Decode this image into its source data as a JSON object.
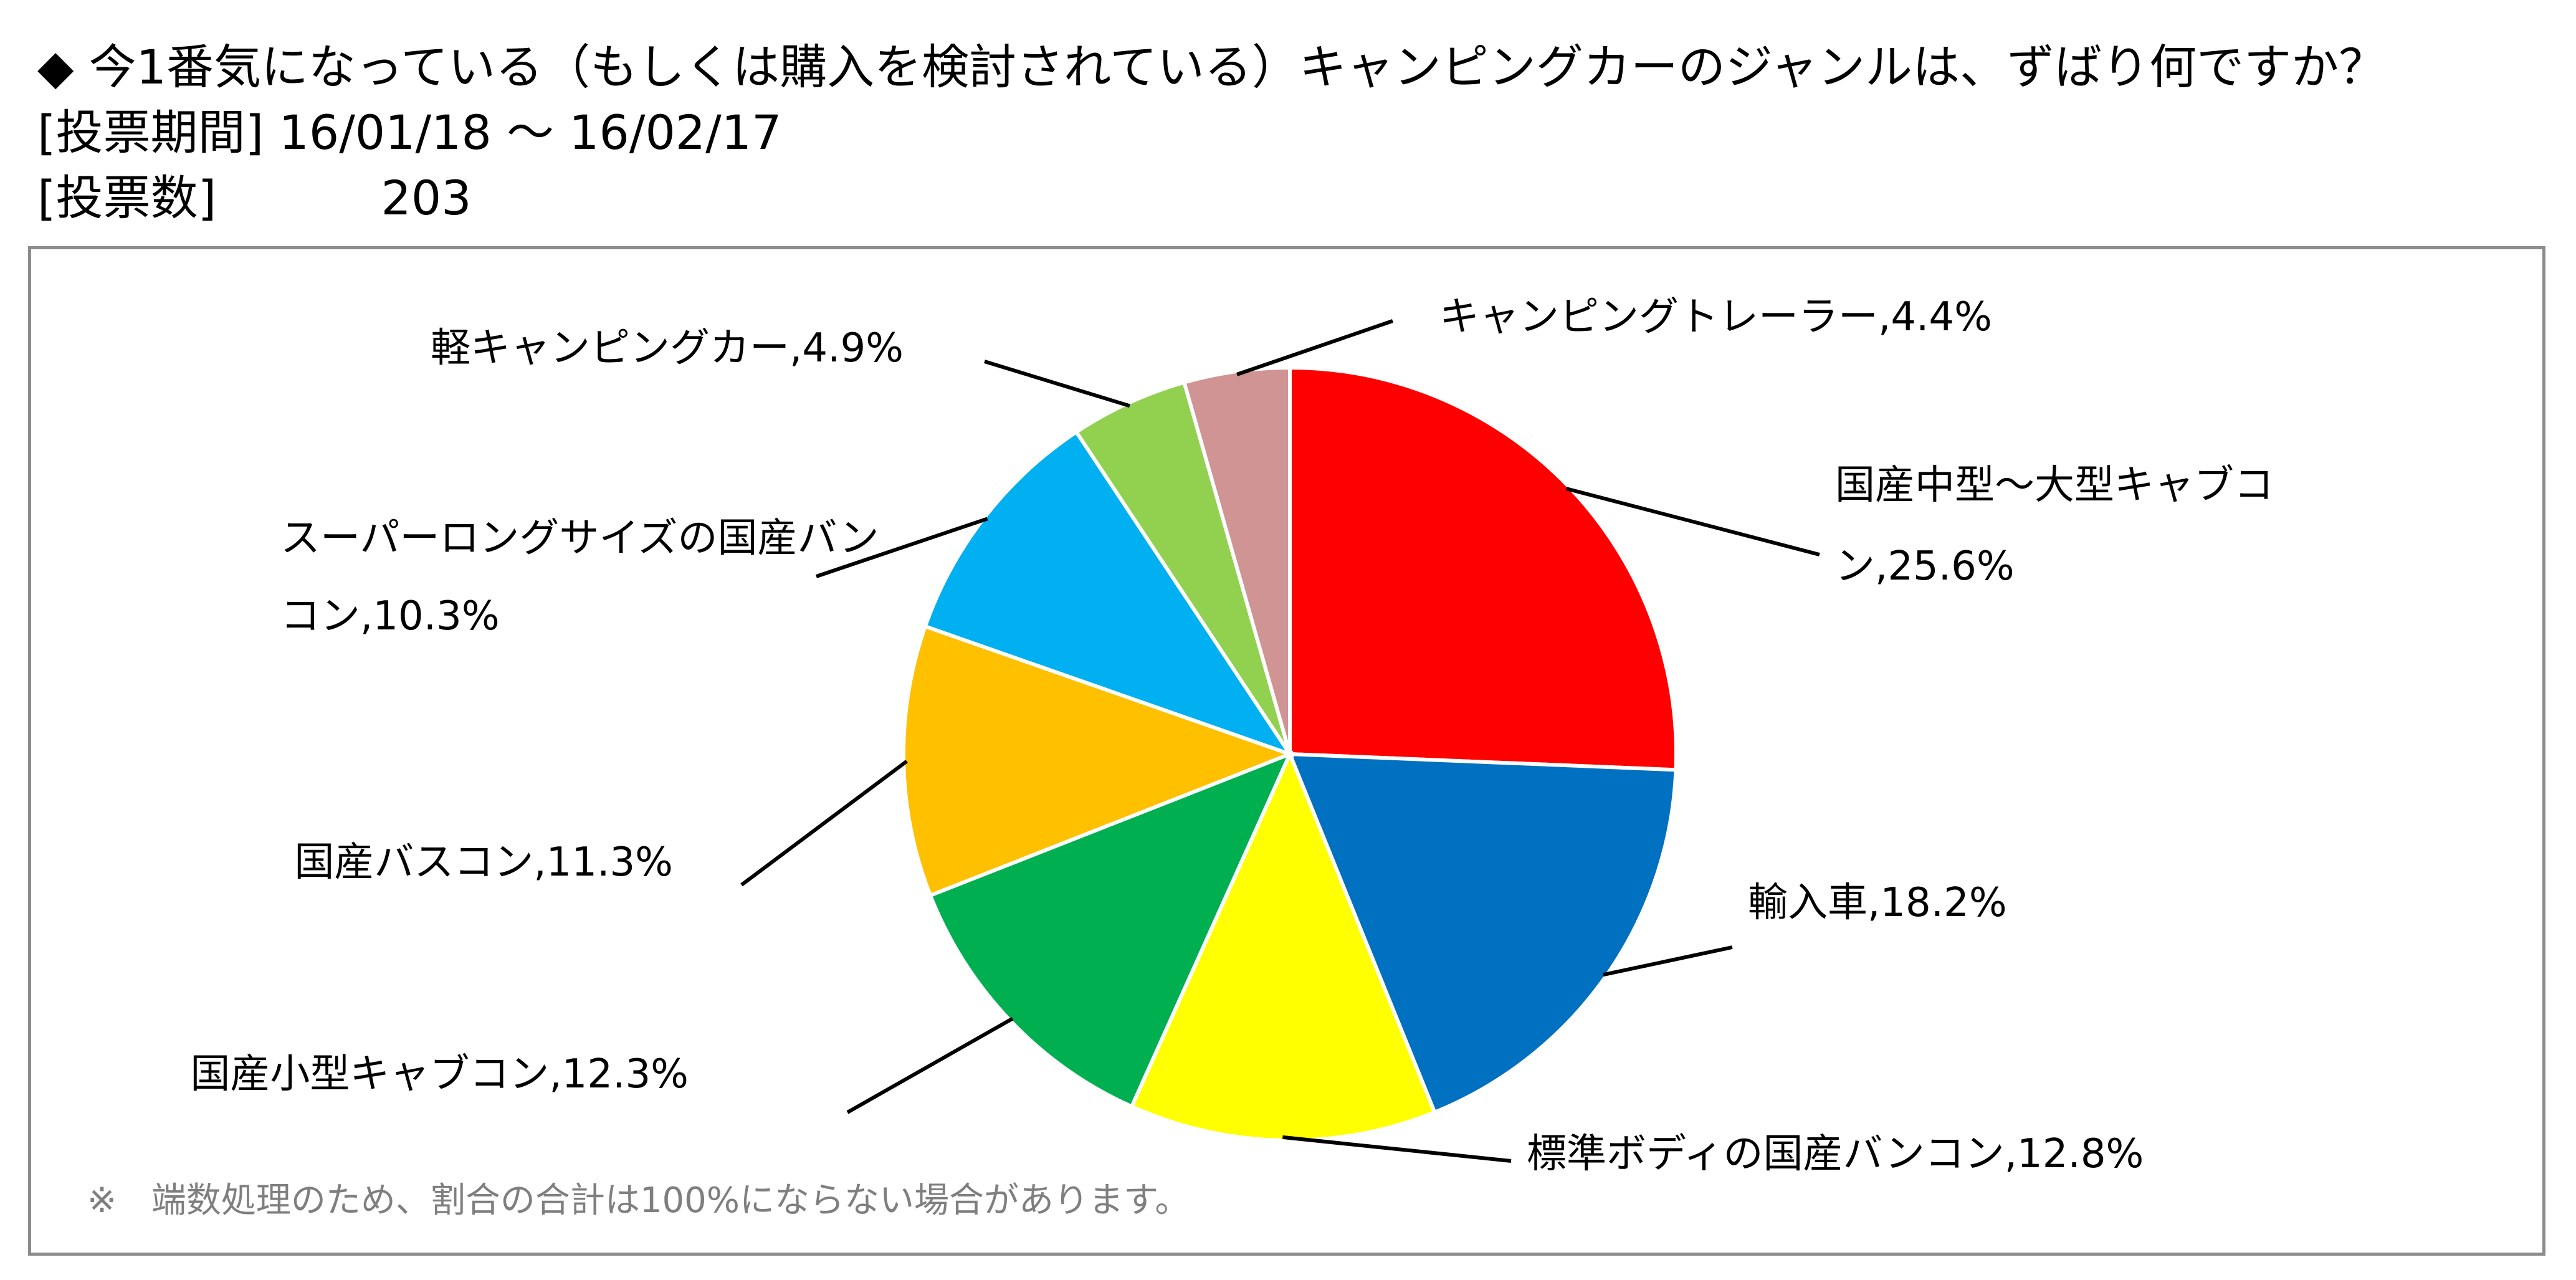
{
  "header": {
    "question": "◆ 今1番気になっている（もしくは購入を検討されている）キャンピングカーのジャンルは、ずばり何ですか？",
    "period_label": "[投票期間]",
    "period_value": "16/01/18 ～ 16/02/17",
    "count_label": "[投票数]",
    "count_value": "203"
  },
  "chart_data": {
    "type": "pie",
    "title": "",
    "slices": [
      {
        "label": "国産中型～大型キャブコン",
        "value": 25.6,
        "label_text": "国産中型～大型キャブコン,25.6%",
        "color": "#FF0000"
      },
      {
        "label": "輸入車",
        "value": 18.2,
        "label_text": "輸入車,18.2%",
        "color": "#0070C0"
      },
      {
        "label": "標準ボディの国産バンコン",
        "value": 12.8,
        "label_text": "標準ボディの国産バンコン,12.8%",
        "color": "#FFFF00"
      },
      {
        "label": "国産小型キャブコン",
        "value": 12.3,
        "label_text": "国産小型キャブコン,12.3%",
        "color": "#00B050"
      },
      {
        "label": "国産バスコン",
        "value": 11.3,
        "label_text": "国産バスコン,11.3%",
        "color": "#FFC000"
      },
      {
        "label": "スーパーロングサイズの国産バンコン",
        "value": 10.3,
        "label_text": "スーパーロングサイズの国産バンコン,10.3%",
        "color": "#00B0F0"
      },
      {
        "label": "軽キャンピングカー",
        "value": 4.9,
        "label_text": "軽キャンピングカー,4.9%",
        "color": "#92D050"
      },
      {
        "label": "キャンピングトレーラー",
        "value": 4.4,
        "label_text": "キャンピングトレーラー,4.4%",
        "color": "#D09494"
      }
    ],
    "start_angle_deg": 0,
    "direction": "clockwise",
    "legend": "none",
    "footnote": "※　端数処理のため、割合の合計は100%にならない場合があります。"
  }
}
